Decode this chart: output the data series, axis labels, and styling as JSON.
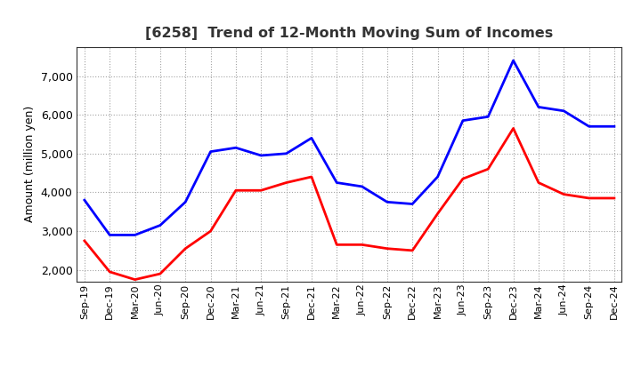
{
  "title": "[6258]  Trend of 12-Month Moving Sum of Incomes",
  "ylabel": "Amount (million yen)",
  "x_labels": [
    "Sep-19",
    "Dec-19",
    "Mar-20",
    "Jun-20",
    "Sep-20",
    "Dec-20",
    "Mar-21",
    "Jun-21",
    "Sep-21",
    "Dec-21",
    "Mar-22",
    "Jun-22",
    "Sep-22",
    "Dec-22",
    "Mar-23",
    "Jun-23",
    "Sep-23",
    "Dec-23",
    "Mar-24",
    "Jun-24",
    "Sep-24",
    "Dec-24"
  ],
  "ordinary_income_full": [
    3800,
    2900,
    2900,
    3150,
    3750,
    5050,
    5150,
    4950,
    5000,
    5400,
    4250,
    4150,
    3750,
    3700,
    4400,
    5850,
    5950,
    7400,
    6200,
    6100,
    5700,
    5700
  ],
  "net_income_full": [
    2750,
    1950,
    1750,
    1900,
    2550,
    3000,
    4050,
    4050,
    4250,
    4400,
    2650,
    2650,
    2550,
    2500,
    3450,
    4350,
    4600,
    5650,
    4250,
    3950,
    3850,
    3850
  ],
  "ordinary_color": "#0000ff",
  "net_color": "#ff0000",
  "ylim_min": 1700,
  "ylim_max": 7750,
  "yticks": [
    2000,
    3000,
    4000,
    5000,
    6000,
    7000
  ],
  "background_color": "#ffffff",
  "grid_color": "#999999",
  "title_color": "#333333"
}
